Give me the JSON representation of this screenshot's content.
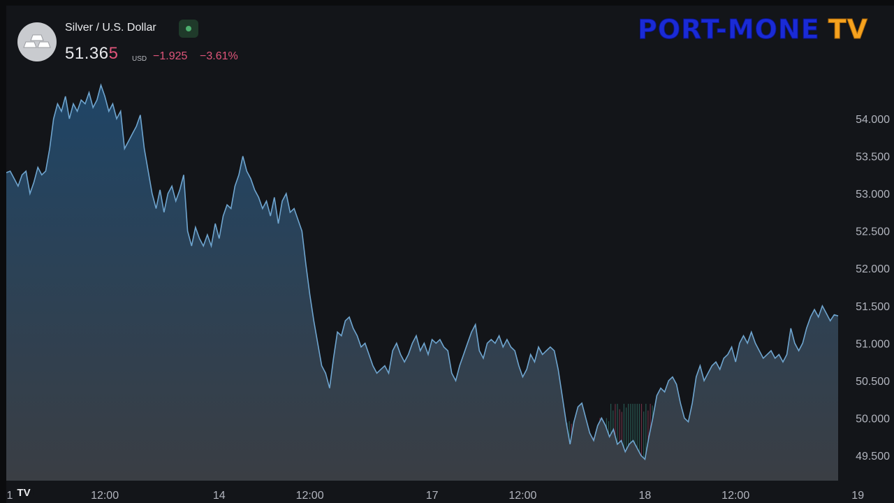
{
  "header": {
    "symbol_title": "Silver / U.S. Dollar",
    "price_main": "51.36",
    "price_last_digit": "5",
    "currency": "USD",
    "change": "−1.925",
    "change_percent": "−3.61%",
    "status_color": "#4caf6e",
    "icon": "silver-bars-icon"
  },
  "watermark": {
    "brand": "PORT-MONE",
    "brand_suffix": "TV"
  },
  "tradingview_logo": "TV",
  "chart_data": {
    "type": "area",
    "series": [
      {
        "values": [
          53.28,
          53.3,
          53.2,
          53.1,
          53.25,
          53.3,
          53.0,
          53.15,
          53.35,
          53.25,
          53.3,
          53.6,
          54.0,
          54.2,
          54.1,
          54.3,
          54.0,
          54.2,
          54.1,
          54.25,
          54.2,
          54.35,
          54.15,
          54.25,
          54.45,
          54.3,
          54.1,
          54.2,
          54.0,
          54.1,
          53.6,
          53.7,
          53.8,
          53.9,
          54.05,
          53.6,
          53.3,
          53.0,
          52.8,
          53.05,
          52.75,
          53.0,
          53.1,
          52.9,
          53.05,
          53.25,
          52.5,
          52.3,
          52.55,
          52.4,
          52.3,
          52.45,
          52.3,
          52.6,
          52.4,
          52.7,
          52.85,
          52.8,
          53.1,
          53.25,
          53.5,
          53.3,
          53.2,
          53.05,
          52.95,
          52.8,
          52.9,
          52.7,
          52.95,
          52.6,
          52.9,
          53.0,
          52.75,
          52.8,
          52.65,
          52.5,
          52.05,
          51.65,
          51.3,
          51.0,
          50.7,
          50.6,
          50.4,
          50.8,
          51.15,
          51.1,
          51.3,
          51.35,
          51.2,
          51.1,
          50.95,
          51.0,
          50.85,
          50.7,
          50.6,
          50.65,
          50.7,
          50.6,
          50.9,
          51.0,
          50.85,
          50.75,
          50.85,
          51.0,
          51.1,
          50.9,
          51.0,
          50.85,
          51.05,
          51.0,
          51.05,
          50.95,
          50.9,
          50.6,
          50.5,
          50.7,
          50.85,
          51.0,
          51.15,
          51.25,
          50.9,
          50.8,
          51.0,
          51.05,
          51.0,
          51.1,
          50.95,
          51.05,
          50.95,
          50.9,
          50.7,
          50.55,
          50.65,
          50.85,
          50.75,
          50.95,
          50.85,
          50.9,
          50.95,
          50.9,
          50.65,
          50.3,
          49.95,
          49.65,
          49.95,
          50.15,
          50.2,
          50.0,
          49.8,
          49.7,
          49.9,
          50.0,
          49.9,
          49.75,
          49.85,
          49.65,
          49.7,
          49.55,
          49.65,
          49.7,
          49.6,
          49.5,
          49.45,
          49.75,
          50.0,
          50.3,
          50.4,
          50.35,
          50.5,
          50.55,
          50.45,
          50.2,
          50.0,
          49.95,
          50.2,
          50.55,
          50.7,
          50.5,
          50.6,
          50.7,
          50.75,
          50.65,
          50.8,
          50.85,
          50.95,
          50.75,
          51.0,
          51.1,
          51.0,
          51.15,
          51.0,
          50.9,
          50.8,
          50.85,
          50.9,
          50.8,
          50.85,
          50.75,
          50.85,
          51.2,
          51.0,
          50.9,
          51.0,
          51.2,
          51.35,
          51.45,
          51.35,
          51.5,
          51.4,
          51.3,
          51.38,
          51.365
        ]
      }
    ],
    "ylim": [
      49.25,
      54.75
    ],
    "y_ticks": [
      "54.000",
      "53.500",
      "53.000",
      "52.500",
      "52.000",
      "51.500",
      "51.000",
      "50.500",
      "50.000",
      "49.500"
    ],
    "y_tick_values": [
      54.0,
      53.5,
      53.0,
      52.5,
      52.0,
      51.5,
      51.0,
      50.5,
      50.0,
      49.5
    ],
    "x_ticks": [
      "12:00",
      "14",
      "12:00",
      "17",
      "12:00",
      "18",
      "12:00",
      "19"
    ],
    "x_ticks_clipped_left": "1",
    "x_tick_positions": [
      25,
      54,
      77,
      108,
      131,
      162,
      185,
      216
    ],
    "x_count": 221,
    "volume": {
      "up_color": "#2f6e63",
      "down_color": "#8a3a52"
    },
    "colors": {
      "line": "#6fa5cf",
      "fill_top": "#1f4566",
      "fill_bottom": "#3a3e44",
      "axis_text": "#b2b5be"
    },
    "grid": false
  }
}
